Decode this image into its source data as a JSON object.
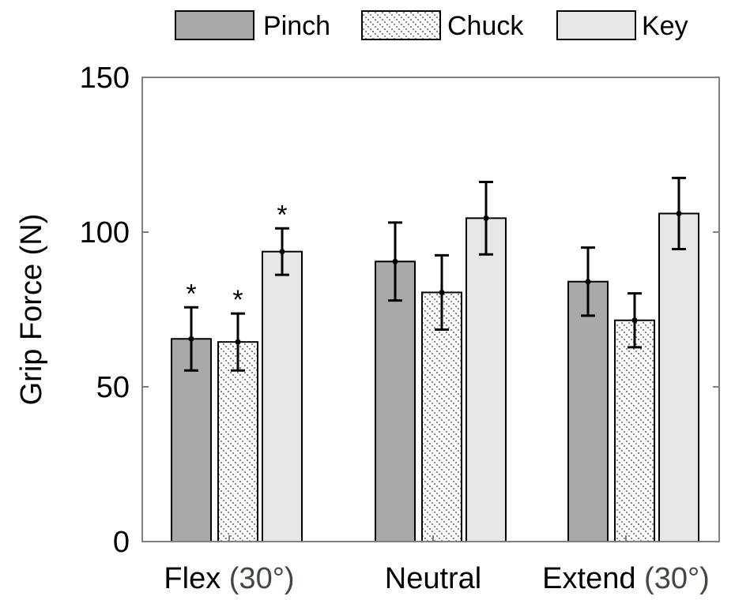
{
  "chart_data": {
    "type": "bar",
    "ylabel": "Grip Force (N)",
    "ylim": [
      0,
      150
    ],
    "yticks": [
      0,
      50,
      100,
      150
    ],
    "grid": false,
    "legend_position": "top",
    "categories": [
      {
        "main": "Flex",
        "suffix": "(30°)"
      },
      {
        "main": "Neutral",
        "suffix": ""
      },
      {
        "main": "Extend",
        "suffix": "(30°)"
      }
    ],
    "series": [
      {
        "name": "Pinch",
        "fill": "#a9a9a9",
        "pattern": "solid",
        "values": [
          65.5,
          90.5,
          84
        ],
        "errors": [
          10.2,
          12.6,
          11
        ],
        "significance": [
          "*",
          "",
          ""
        ]
      },
      {
        "name": "Chuck",
        "fill": "#ffffff",
        "pattern": "dotted-diagonal",
        "values": [
          64.5,
          80.5,
          71.5
        ],
        "errors": [
          9.2,
          12,
          8.7
        ],
        "significance": [
          "*",
          "",
          ""
        ]
      },
      {
        "name": "Key",
        "fill": "#e6e6e6",
        "pattern": "solid",
        "values": [
          93.7,
          104.5,
          106
        ],
        "errors": [
          7.5,
          11.7,
          11.5
        ],
        "significance": [
          "*",
          "",
          ""
        ]
      }
    ],
    "colors": {
      "axis": "#808080",
      "bar_outline": "#000000",
      "error_bar": "#000000",
      "text": "#000000",
      "category_suffix": "#3d4a3d"
    }
  }
}
